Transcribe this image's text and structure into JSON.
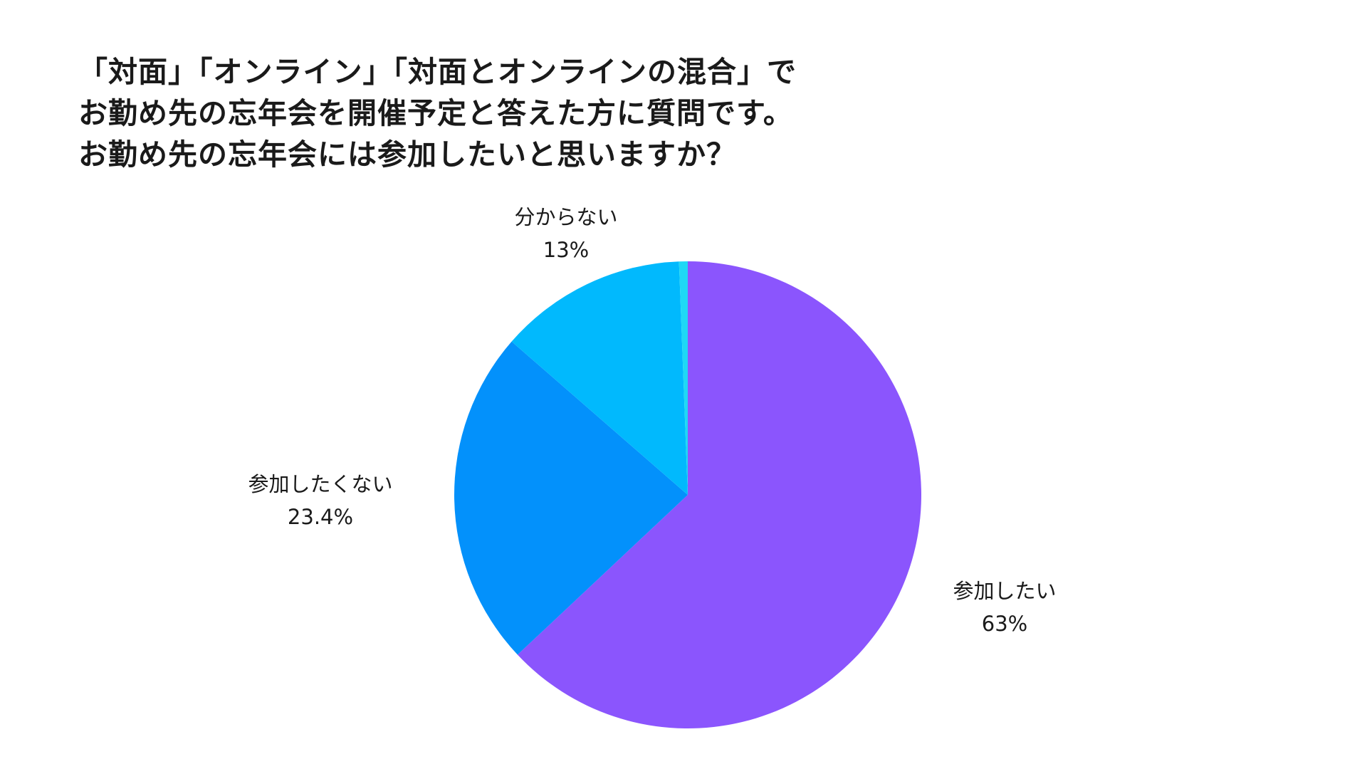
{
  "chart_data": {
    "type": "pie",
    "title_lines": [
      "「対面」「オンライン」「対面とオンラインの混合」で",
      "お勤め先の忘年会を開催予定と答えた方に質問です。",
      "お勤め先の忘年会には参加したいと思いますか？"
    ],
    "slices": [
      {
        "label": "参加したい",
        "value": 63,
        "value_label": "63%",
        "color": "#8b55fd"
      },
      {
        "label": "参加したくない",
        "value": 23.4,
        "value_label": "23.4%",
        "color": "#0391fb"
      },
      {
        "label": "分からない",
        "value": 13,
        "value_label": "13%",
        "color": "#01b9fd"
      },
      {
        "label": "",
        "value": 0.6,
        "value_label": "",
        "color": "#1fd8f5"
      }
    ],
    "start_angle": "12 o'clock",
    "direction": "clockwise",
    "legend": "none"
  }
}
